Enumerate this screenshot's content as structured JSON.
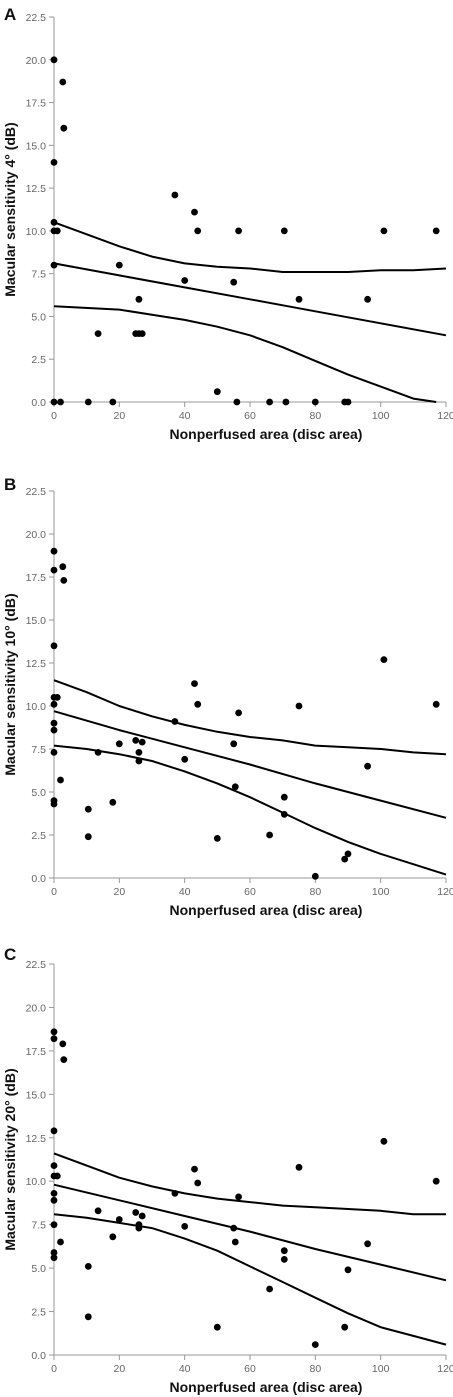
{
  "chart_data": [
    {
      "type": "scatter",
      "panel_label": "A",
      "xlabel": "Nonperfused area (disc area)",
      "ylabel": "Macular sensitivity 4° (dB)",
      "xlim": [
        0,
        120
      ],
      "ylim": [
        0,
        22.5
      ],
      "xticks": [
        "0",
        "20",
        "40",
        "60",
        "80",
        "100",
        "120"
      ],
      "yticks": [
        "0.0",
        "2.5",
        "5.0",
        "7.5",
        "10.0",
        "12.5",
        "15.0",
        "17.5",
        "20.0",
        "22.5"
      ],
      "points": [
        [
          0,
          20.0
        ],
        [
          0,
          14.0
        ],
        [
          0,
          10.5
        ],
        [
          0,
          10.0
        ],
        [
          0,
          8.0
        ],
        [
          0,
          0.0
        ],
        [
          1,
          10.0
        ],
        [
          2,
          0.0
        ],
        [
          2.7,
          18.7
        ],
        [
          3,
          16.0
        ],
        [
          10.5,
          0.0
        ],
        [
          13.5,
          4.0
        ],
        [
          18,
          0.0
        ],
        [
          20,
          8.0
        ],
        [
          25,
          4.0
        ],
        [
          26,
          6.0
        ],
        [
          26,
          4.0
        ],
        [
          27,
          4.0
        ],
        [
          37,
          12.1
        ],
        [
          40,
          7.1
        ],
        [
          43,
          11.1
        ],
        [
          44,
          10.0
        ],
        [
          50,
          0.6
        ],
        [
          55,
          7.0
        ],
        [
          56,
          0.0
        ],
        [
          56.5,
          10.0
        ],
        [
          66,
          0.0
        ],
        [
          70.5,
          10.0
        ],
        [
          71,
          0.0
        ],
        [
          75,
          6.0
        ],
        [
          80,
          0.0
        ],
        [
          89,
          0.0
        ],
        [
          90,
          0.0
        ],
        [
          96,
          6.0
        ],
        [
          101,
          10.0
        ],
        [
          117,
          10.0
        ]
      ],
      "series": [
        {
          "name": "",
          "x": [
            0,
            20,
            40,
            60,
            80,
            100,
            120
          ],
          "y": [
            8.1,
            7.4,
            6.7,
            6.0,
            5.3,
            4.6,
            3.9
          ]
        },
        {
          "name": "",
          "x": [
            0,
            10,
            20,
            30,
            40,
            50,
            60,
            70,
            80,
            90,
            100,
            110,
            120
          ],
          "y": [
            10.5,
            9.8,
            9.1,
            8.5,
            8.1,
            7.9,
            7.8,
            7.6,
            7.6,
            7.6,
            7.7,
            7.7,
            7.8
          ]
        },
        {
          "name": "",
          "x": [
            0,
            20,
            30,
            40,
            50,
            60,
            70,
            80,
            90,
            100,
            110,
            117
          ],
          "y": [
            5.6,
            5.4,
            5.1,
            4.8,
            4.4,
            3.9,
            3.2,
            2.4,
            1.6,
            0.9,
            0.2,
            0.0
          ]
        }
      ]
    },
    {
      "type": "scatter",
      "panel_label": "B",
      "xlabel": "Nonperfused area (disc area)",
      "ylabel": "Macular sensitivity 10° (dB)",
      "xlim": [
        0,
        120
      ],
      "ylim": [
        0,
        22.5
      ],
      "xticks": [
        "0",
        "20",
        "40",
        "60",
        "80",
        "100",
        "120"
      ],
      "yticks": [
        "0.0",
        "2.5",
        "5.0",
        "7.5",
        "10.0",
        "12.5",
        "15.0",
        "17.5",
        "20.0",
        "22.5"
      ],
      "points": [
        [
          0,
          19.0
        ],
        [
          0,
          17.9
        ],
        [
          0,
          13.5
        ],
        [
          0,
          10.5
        ],
        [
          0,
          10.1
        ],
        [
          0,
          9.0
        ],
        [
          0,
          8.6
        ],
        [
          0,
          7.3
        ],
        [
          0,
          4.5
        ],
        [
          0,
          4.3
        ],
        [
          1,
          10.5
        ],
        [
          2,
          5.7
        ],
        [
          2.7,
          18.1
        ],
        [
          3,
          17.3
        ],
        [
          10.5,
          4.0
        ],
        [
          10.5,
          2.4
        ],
        [
          13.5,
          7.3
        ],
        [
          18,
          4.4
        ],
        [
          20,
          7.8
        ],
        [
          25,
          8.0
        ],
        [
          26,
          7.3
        ],
        [
          26,
          6.8
        ],
        [
          27,
          7.9
        ],
        [
          37,
          9.1
        ],
        [
          40,
          6.9
        ],
        [
          43,
          11.3
        ],
        [
          44,
          10.1
        ],
        [
          50,
          2.3
        ],
        [
          55,
          7.8
        ],
        [
          55.5,
          5.3
        ],
        [
          56.5,
          9.6
        ],
        [
          66,
          2.5
        ],
        [
          70.5,
          4.7
        ],
        [
          70.5,
          3.7
        ],
        [
          75,
          10.0
        ],
        [
          80,
          0.1
        ],
        [
          89,
          1.1
        ],
        [
          90,
          1.4
        ],
        [
          96,
          6.5
        ],
        [
          101,
          12.7
        ],
        [
          117,
          10.1
        ]
      ],
      "series": [
        {
          "name": "",
          "x": [
            0,
            20,
            40,
            60,
            80,
            100,
            120
          ],
          "y": [
            9.7,
            8.6,
            7.6,
            6.6,
            5.5,
            4.5,
            3.5
          ]
        },
        {
          "name": "",
          "x": [
            0,
            10,
            20,
            30,
            40,
            50,
            60,
            70,
            80,
            90,
            100,
            110,
            120
          ],
          "y": [
            11.5,
            10.8,
            10.0,
            9.4,
            8.9,
            8.5,
            8.2,
            8.0,
            7.7,
            7.6,
            7.5,
            7.3,
            7.2
          ]
        },
        {
          "name": "",
          "x": [
            0,
            10,
            20,
            30,
            40,
            50,
            60,
            70,
            80,
            90,
            100,
            110,
            120
          ],
          "y": [
            7.7,
            7.5,
            7.2,
            6.8,
            6.2,
            5.5,
            4.7,
            3.8,
            2.9,
            2.1,
            1.4,
            0.8,
            0.2
          ]
        }
      ]
    },
    {
      "type": "scatter",
      "panel_label": "C",
      "xlabel": "Nonperfused area (disc area)",
      "ylabel": "Macular sensitivity 20° (dB)",
      "xlim": [
        0,
        120
      ],
      "ylim": [
        0,
        22.5
      ],
      "xticks": [
        "0",
        "20",
        "40",
        "60",
        "80",
        "100",
        "120"
      ],
      "yticks": [
        "0.0",
        "2.5",
        "5.0",
        "7.5",
        "10.0",
        "12.5",
        "15.0",
        "17.5",
        "20.0",
        "22.5"
      ],
      "points": [
        [
          0,
          18.6
        ],
        [
          0,
          18.2
        ],
        [
          0,
          12.9
        ],
        [
          0,
          10.9
        ],
        [
          0,
          10.3
        ],
        [
          0,
          9.3
        ],
        [
          0,
          8.9
        ],
        [
          0,
          7.5
        ],
        [
          0,
          5.9
        ],
        [
          0,
          5.6
        ],
        [
          1,
          10.3
        ],
        [
          2,
          6.5
        ],
        [
          2.7,
          17.9
        ],
        [
          3,
          17.0
        ],
        [
          10.5,
          5.1
        ],
        [
          10.5,
          2.2
        ],
        [
          13.5,
          8.3
        ],
        [
          18,
          6.8
        ],
        [
          20,
          7.8
        ],
        [
          25,
          8.2
        ],
        [
          26,
          7.5
        ],
        [
          26,
          7.3
        ],
        [
          27,
          8.0
        ],
        [
          37,
          9.3
        ],
        [
          40,
          7.4
        ],
        [
          43,
          10.7
        ],
        [
          44,
          9.9
        ],
        [
          50,
          1.6
        ],
        [
          55,
          7.3
        ],
        [
          55.5,
          6.5
        ],
        [
          56.5,
          9.1
        ],
        [
          66,
          3.8
        ],
        [
          70.5,
          6.0
        ],
        [
          70.5,
          5.5
        ],
        [
          75,
          10.8
        ],
        [
          80,
          0.6
        ],
        [
          89,
          1.6
        ],
        [
          90,
          4.9
        ],
        [
          96,
          6.4
        ],
        [
          101,
          12.3
        ],
        [
          117,
          10.0
        ]
      ],
      "series": [
        {
          "name": "",
          "x": [
            0,
            20,
            40,
            60,
            80,
            100,
            120
          ],
          "y": [
            9.8,
            8.9,
            8.0,
            7.1,
            6.1,
            5.2,
            4.3
          ]
        },
        {
          "name": "",
          "x": [
            0,
            10,
            20,
            30,
            40,
            50,
            60,
            70,
            80,
            90,
            100,
            110,
            120
          ],
          "y": [
            11.6,
            10.9,
            10.2,
            9.7,
            9.3,
            9.0,
            8.8,
            8.6,
            8.5,
            8.4,
            8.3,
            8.1,
            8.1
          ]
        },
        {
          "name": "",
          "x": [
            0,
            10,
            20,
            30,
            40,
            50,
            60,
            70,
            80,
            90,
            100,
            110,
            120
          ],
          "y": [
            8.1,
            7.9,
            7.6,
            7.3,
            6.7,
            6.0,
            5.1,
            4.2,
            3.3,
            2.4,
            1.6,
            1.1,
            0.6
          ]
        }
      ]
    }
  ]
}
